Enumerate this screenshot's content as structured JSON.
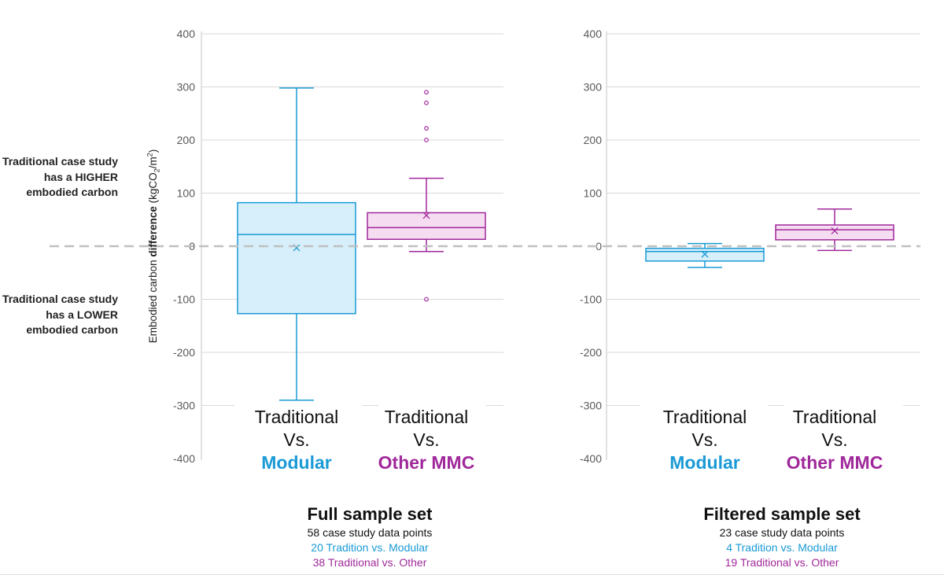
{
  "chart_data": [
    {
      "type": "box",
      "title": "Full sample set",
      "subtitle": "58 case study data points",
      "notes": [
        "20 Tradition vs. Modular",
        "38 Traditional vs. Other"
      ],
      "ylim": [
        -400,
        400
      ],
      "yticks": [
        400,
        300,
        200,
        100,
        0,
        -100,
        -200,
        -300,
        -400
      ],
      "series": [
        {
          "name": "Traditional Vs. Modular",
          "line1": "Traditional",
          "line2": "Vs.",
          "line3": "Modular",
          "color": "#1a9ad6",
          "fill": "#d6effa",
          "min": -290,
          "q1": -127,
          "median": 22,
          "q3": 82,
          "max": 298,
          "mean": -3,
          "outliers": []
        },
        {
          "name": "Traditional Vs. Other MMC",
          "line1": "Traditional",
          "line2": "Vs.",
          "line3": "Other MMC",
          "color": "#a0289a",
          "fill": "#f5dcf1",
          "min": -10,
          "q1": 13,
          "median": 35,
          "q3": 63,
          "max": 128,
          "mean": 58,
          "outliers": [
            290,
            270,
            222,
            200,
            -100
          ]
        }
      ]
    },
    {
      "type": "box",
      "title": "Filtered sample set",
      "subtitle": "23 case study data points",
      "notes": [
        "4 Tradition vs. Modular",
        "19 Traditional vs. Other"
      ],
      "ylim": [
        -400,
        400
      ],
      "yticks": [
        400,
        300,
        200,
        100,
        0,
        -100,
        -200,
        -300,
        -400
      ],
      "series": [
        {
          "name": "Traditional Vs. Modular",
          "line1": "Traditional",
          "line2": "Vs.",
          "line3": "Modular",
          "color": "#1a9ad6",
          "fill": "#d6effa",
          "min": -40,
          "q1": -28,
          "median": -10,
          "q3": -4,
          "max": 5,
          "mean": -15,
          "outliers": []
        },
        {
          "name": "Traditional Vs. Other MMC",
          "line1": "Traditional",
          "line2": "Vs.",
          "line3": "Other MMC",
          "color": "#a0289a",
          "fill": "#f5dcf1",
          "min": -8,
          "q1": 12,
          "median": 31,
          "q3": 40,
          "max": 70,
          "mean": 29,
          "outliers": []
        }
      ]
    }
  ],
  "ylabel": {
    "pre": "Embodied carbon ",
    "bold": "difference",
    "post": " (kgCO",
    "sub": "2",
    "mid": "/m",
    "sup": "2",
    "end": ")"
  },
  "annotations": {
    "higher": "Traditional case study has a HIGHER embodied carbon",
    "lower": "Traditional case study has a LOWER embodied carbon"
  }
}
